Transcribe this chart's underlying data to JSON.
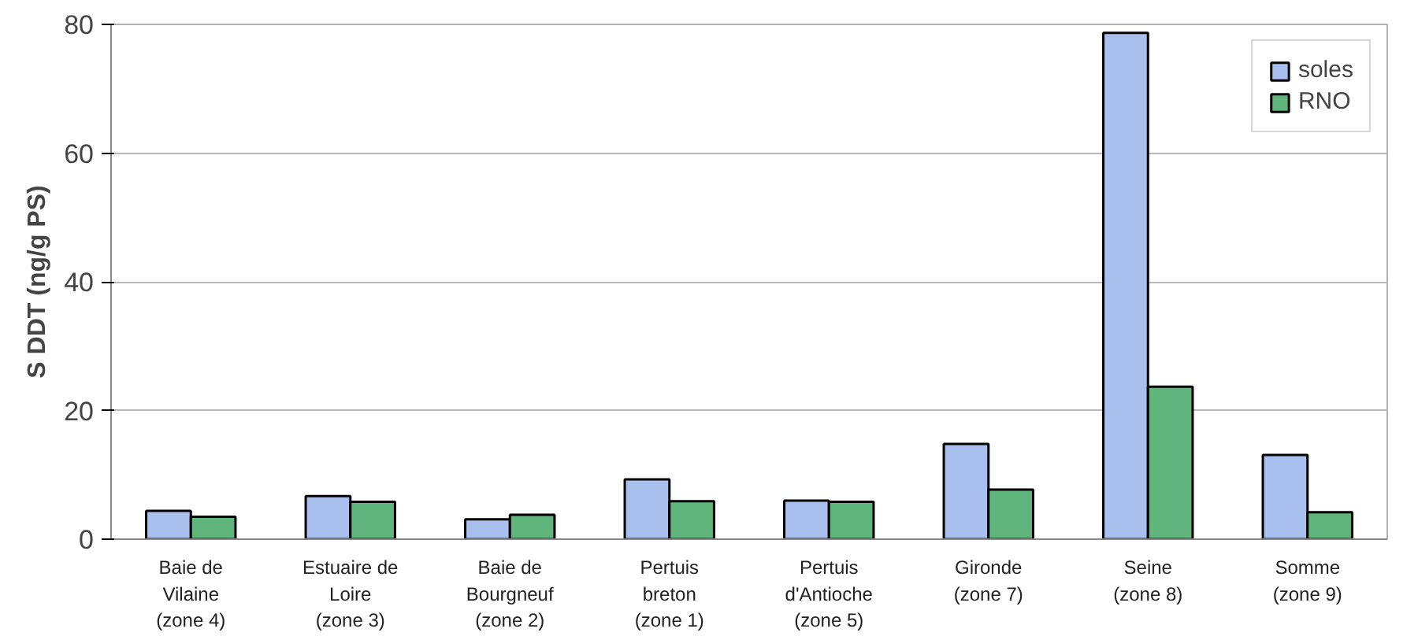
{
  "chart_data": {
    "type": "bar",
    "ylabel": "S DDT (ng/g PS)",
    "categories": [
      "Baie de\nVilaine\n(zone 4)",
      "Estuaire de\nLoire\n(zone 3)",
      "Baie de\nBourgneuf\n(zone 2)",
      "Pertuis\nbreton\n(zone 1)",
      "Pertuis\nd'Antioche\n(zone 5)",
      "Gironde\n(zone 7)",
      "Seine\n(zone 8)",
      "Somme\n(zone 9)"
    ],
    "series": [
      {
        "name": "soles",
        "color": "#a9c0ef",
        "values": [
          4.4,
          6.7,
          3.1,
          9.3,
          6.0,
          14.8,
          78.7,
          13.1
        ]
      },
      {
        "name": "RNO",
        "color": "#5fb57c",
        "values": [
          3.5,
          5.8,
          3.8,
          5.9,
          5.8,
          7.7,
          23.7,
          4.2
        ]
      }
    ],
    "ylim": [
      0,
      80
    ],
    "yticks": [
      0,
      20,
      40,
      60,
      80
    ],
    "grid": "y",
    "legend": "top right"
  }
}
